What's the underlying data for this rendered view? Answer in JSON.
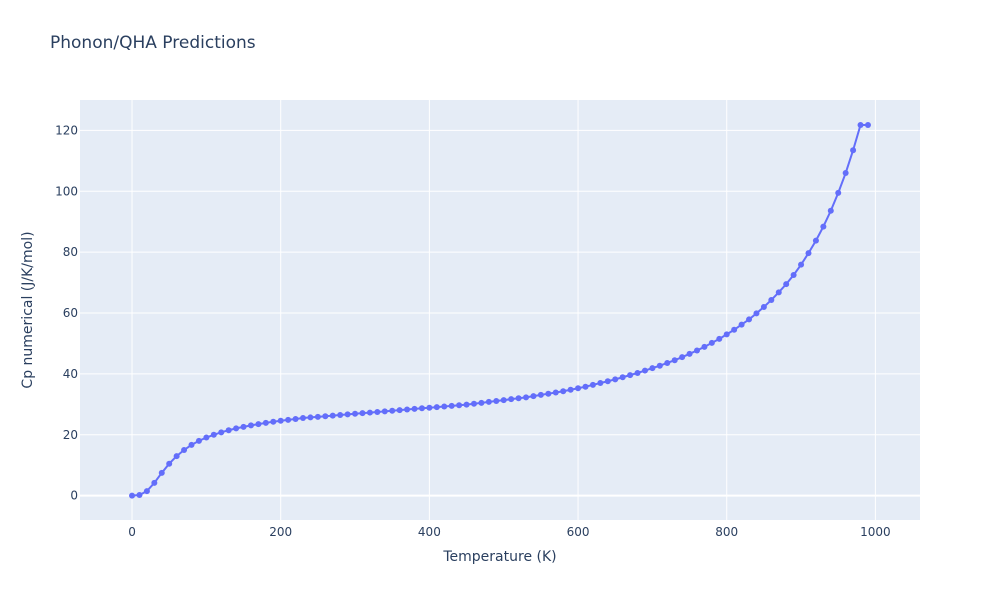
{
  "chart_data": {
    "type": "line",
    "title": "Phonon/QHA Predictions",
    "xlabel": "Temperature (K)",
    "ylabel": "Cp numerical (J/K/mol)",
    "xlim": [
      -70,
      1060
    ],
    "ylim": [
      -8,
      130
    ],
    "xticks": [
      0,
      200,
      400,
      600,
      800,
      1000
    ],
    "yticks": [
      0,
      20,
      40,
      60,
      80,
      100,
      120
    ],
    "grid": true,
    "colors": {
      "line": "#636efa",
      "plot_bg": "#e5ecf6",
      "grid": "#ffffff",
      "text": "#2a3f5f"
    },
    "x": [
      0,
      10,
      20,
      30,
      40,
      50,
      60,
      70,
      80,
      90,
      100,
      110,
      120,
      130,
      140,
      150,
      160,
      170,
      180,
      190,
      200,
      210,
      220,
      230,
      240,
      250,
      260,
      270,
      280,
      290,
      300,
      310,
      320,
      330,
      340,
      350,
      360,
      370,
      380,
      390,
      400,
      410,
      420,
      430,
      440,
      450,
      460,
      470,
      480,
      490,
      500,
      510,
      520,
      530,
      540,
      550,
      560,
      570,
      580,
      590,
      600,
      610,
      620,
      630,
      640,
      650,
      660,
      670,
      680,
      690,
      700,
      710,
      720,
      730,
      740,
      750,
      760,
      770,
      780,
      790,
      800,
      810,
      820,
      830,
      840,
      850,
      860,
      870,
      880,
      890,
      900,
      910,
      920,
      930,
      940,
      950,
      960,
      970,
      980,
      990
    ],
    "y": [
      0.0,
      0.2,
      1.5,
      4.2,
      7.5,
      10.5,
      13.0,
      15.0,
      16.7,
      18.0,
      19.1,
      20.0,
      20.8,
      21.5,
      22.1,
      22.6,
      23.1,
      23.5,
      23.9,
      24.3,
      24.6,
      24.9,
      25.2,
      25.5,
      25.7,
      25.9,
      26.1,
      26.3,
      26.5,
      26.7,
      26.9,
      27.1,
      27.3,
      27.5,
      27.7,
      27.9,
      28.1,
      28.3,
      28.5,
      28.7,
      28.9,
      29.1,
      29.3,
      29.5,
      29.7,
      29.9,
      30.2,
      30.5,
      30.8,
      31.1,
      31.4,
      31.7,
      32.0,
      32.3,
      32.7,
      33.1,
      33.5,
      33.9,
      34.3,
      34.8,
      35.3,
      35.8,
      36.4,
      37.0,
      37.6,
      38.2,
      38.9,
      39.6,
      40.3,
      41.1,
      41.9,
      42.7,
      43.6,
      44.5,
      45.5,
      46.6,
      47.7,
      48.9,
      50.2,
      51.5,
      53.0,
      54.5,
      56.2,
      57.9,
      59.9,
      62.0,
      64.3,
      66.8,
      69.5,
      72.5,
      75.9,
      79.7,
      83.8,
      88.4,
      93.6,
      99.5,
      106.0,
      113.5,
      121.8,
      121.8
    ]
  }
}
